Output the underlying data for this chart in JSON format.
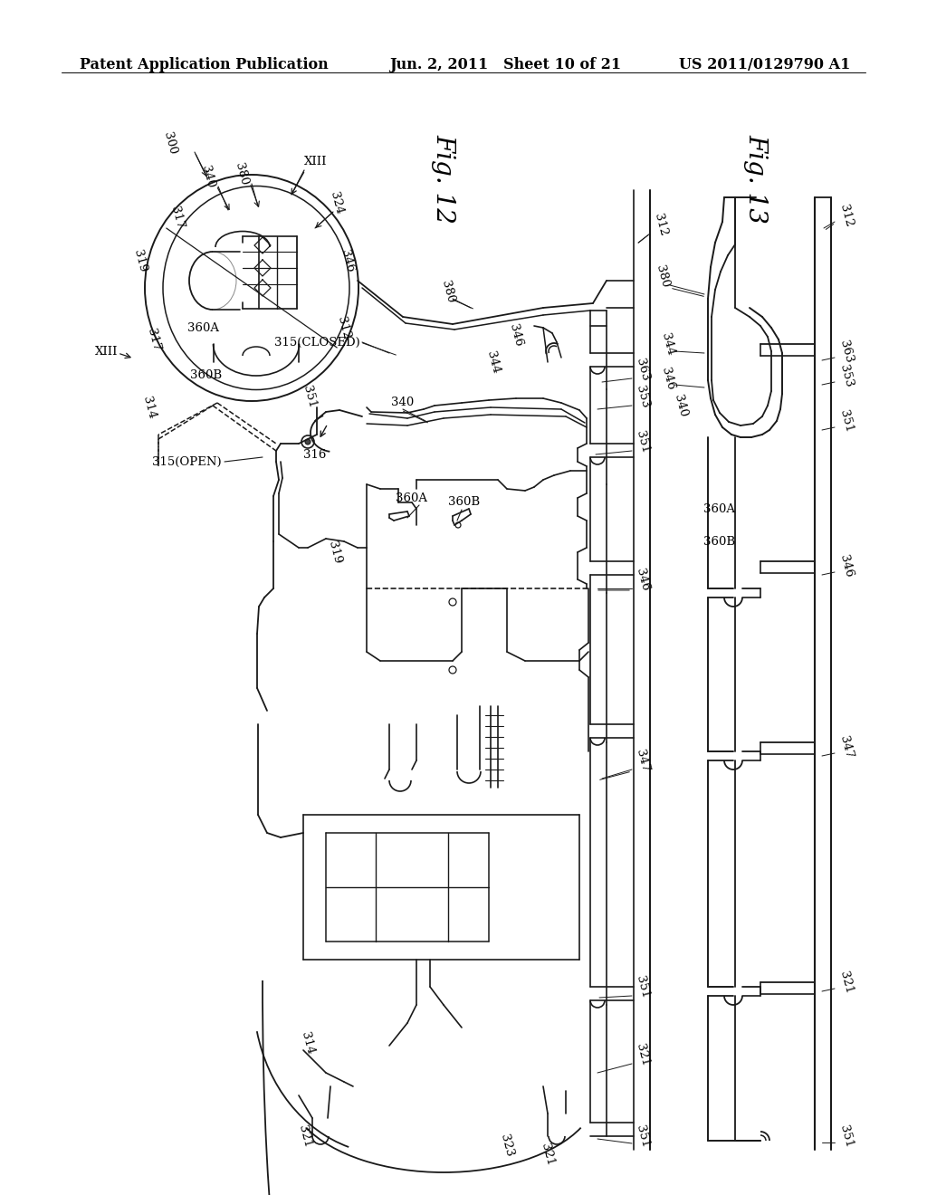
{
  "background_color": "#ffffff",
  "header_left": "Patent Application Publication",
  "header_center": "Jun. 2, 2011   Sheet 10 of 21",
  "header_right": "US 2011/0129790 A1",
  "fig12_label": "Fig. 12",
  "fig13_label": "Fig. 13",
  "header_fontsize": 11.5,
  "fig_label_fontsize": 20,
  "ref_fontsize": 9.5,
  "line_color": "#1a1a1a",
  "text_color": "#000000"
}
